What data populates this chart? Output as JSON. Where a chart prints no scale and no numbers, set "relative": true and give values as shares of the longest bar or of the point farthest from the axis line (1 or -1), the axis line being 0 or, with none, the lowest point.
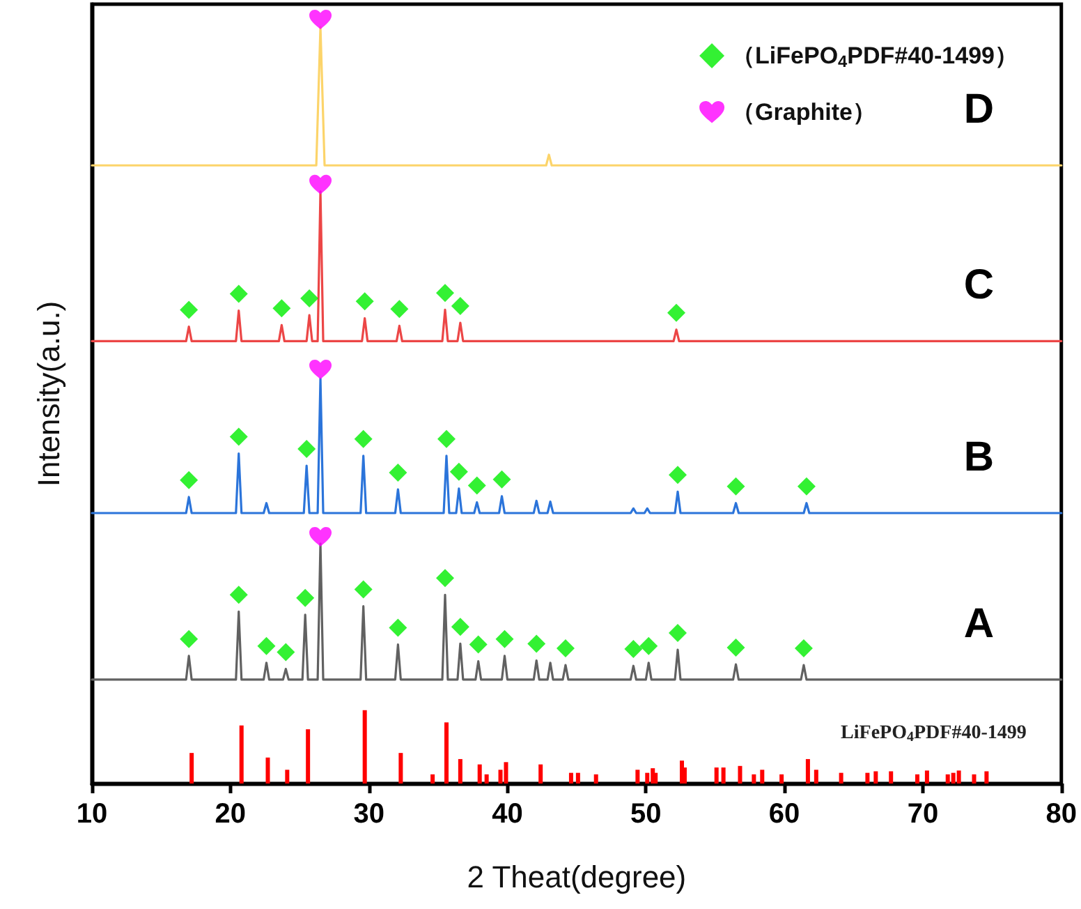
{
  "chart_data": {
    "type": "line",
    "relative": true,
    "xlabel": "2 Theat(degree)",
    "ylabel": "Intensity(a.u.)",
    "xlim": [
      10,
      80
    ],
    "xticks": [
      10,
      20,
      30,
      40,
      50,
      60,
      70,
      80
    ],
    "grid": false,
    "legend": "top right",
    "marker": "none",
    "series": [
      {
        "name": "D",
        "color": "#fcd46a",
        "x": [
          10,
          26.2,
          26.5,
          26.8,
          42.8,
          43.0,
          43.2,
          80
        ],
        "values": [
          0.809,
          0.809,
          0.99,
          0.809,
          0.809,
          0.823,
          0.809,
          0.809
        ]
      },
      {
        "name": "C",
        "color": "#ec4646",
        "x": [
          10,
          16.8,
          17.0,
          17.2,
          20.4,
          20.6,
          20.8,
          23.5,
          23.7,
          23.9,
          25.5,
          25.7,
          25.9,
          26.3,
          26.5,
          26.7,
          29.5,
          29.7,
          29.9,
          32.0,
          32.2,
          32.4,
          35.3,
          35.5,
          35.7,
          36.4,
          36.6,
          36.8,
          52.0,
          52.2,
          52.4,
          80
        ],
        "values": [
          0.579,
          0.579,
          0.598,
          0.579,
          0.579,
          0.619,
          0.579,
          0.579,
          0.6,
          0.579,
          0.579,
          0.613,
          0.579,
          0.579,
          0.775,
          0.579,
          0.579,
          0.609,
          0.579,
          0.579,
          0.599,
          0.579,
          0.579,
          0.62,
          0.579,
          0.579,
          0.603,
          0.579,
          0.579,
          0.594,
          0.579,
          0.579
        ]
      },
      {
        "name": "B",
        "color": "#2b74da",
        "x": [
          10,
          16.8,
          17.0,
          17.2,
          20.4,
          20.6,
          20.8,
          22.4,
          22.6,
          22.8,
          25.3,
          25.5,
          25.7,
          26.3,
          26.5,
          26.7,
          29.4,
          29.6,
          29.8,
          31.9,
          32.1,
          32.3,
          35.4,
          35.6,
          35.8,
          36.3,
          36.5,
          36.7,
          37.6,
          37.8,
          38.0,
          39.4,
          39.6,
          39.8,
          41.9,
          42.1,
          42.3,
          42.9,
          43.1,
          43.3,
          48.9,
          49.1,
          49.3,
          49.9,
          50.1,
          50.3,
          52.1,
          52.3,
          52.5,
          56.3,
          56.5,
          56.7,
          61.4,
          61.6,
          61.8,
          80
        ],
        "values": [
          0.354,
          0.354,
          0.375,
          0.354,
          0.354,
          0.432,
          0.354,
          0.354,
          0.367,
          0.354,
          0.354,
          0.416,
          0.354,
          0.354,
          0.53,
          0.354,
          0.354,
          0.429,
          0.354,
          0.354,
          0.385,
          0.354,
          0.354,
          0.429,
          0.354,
          0.354,
          0.386,
          0.354,
          0.354,
          0.368,
          0.354,
          0.354,
          0.376,
          0.354,
          0.354,
          0.37,
          0.354,
          0.354,
          0.369,
          0.354,
          0.354,
          0.36,
          0.354,
          0.354,
          0.36,
          0.354,
          0.354,
          0.382,
          0.354,
          0.354,
          0.367,
          0.354,
          0.354,
          0.367,
          0.354,
          0.354
        ]
      },
      {
        "name": "A",
        "color": "#616161",
        "x": [
          10,
          16.8,
          17.0,
          17.2,
          20.4,
          20.6,
          20.8,
          22.4,
          22.6,
          22.8,
          23.8,
          24.0,
          24.2,
          25.2,
          25.4,
          25.6,
          26.3,
          26.5,
          26.7,
          29.4,
          29.6,
          29.8,
          31.9,
          32.1,
          32.3,
          35.3,
          35.5,
          35.7,
          36.4,
          36.6,
          36.8,
          37.7,
          37.9,
          38.1,
          39.6,
          39.8,
          40.0,
          41.9,
          42.1,
          42.3,
          42.9,
          43.1,
          43.3,
          44.0,
          44.2,
          44.4,
          48.9,
          49.1,
          49.3,
          50.0,
          50.2,
          50.4,
          52.1,
          52.3,
          52.5,
          56.3,
          56.5,
          56.7,
          61.2,
          61.4,
          61.6,
          80
        ],
        "values": [
          0.136,
          0.136,
          0.167,
          0.136,
          0.136,
          0.225,
          0.136,
          0.136,
          0.158,
          0.136,
          0.136,
          0.15,
          0.136,
          0.136,
          0.221,
          0.136,
          0.136,
          0.314,
          0.136,
          0.136,
          0.232,
          0.136,
          0.136,
          0.182,
          0.136,
          0.136,
          0.247,
          0.136,
          0.136,
          0.183,
          0.136,
          0.136,
          0.16,
          0.136,
          0.136,
          0.167,
          0.136,
          0.136,
          0.161,
          0.136,
          0.136,
          0.158,
          0.136,
          0.136,
          0.155,
          0.136,
          0.136,
          0.154,
          0.136,
          0.136,
          0.158,
          0.136,
          0.136,
          0.175,
          0.136,
          0.136,
          0.156,
          0.136,
          0.136,
          0.155,
          0.136,
          0.136
        ]
      },
      {
        "name": "LiFePO$_{4}$PDF#40-1499",
        "type": "bar",
        "color": "#ff0000",
        "x": [
          17.2,
          20.8,
          22.7,
          24.1,
          25.6,
          29.7,
          32.3,
          34.6,
          35.6,
          36.6,
          38.0,
          38.5,
          39.5,
          39.9,
          42.4,
          44.6,
          45.1,
          46.4,
          49.4,
          50.1,
          50.5,
          50.7,
          52.6,
          52.8,
          55.1,
          55.6,
          56.8,
          57.8,
          58.4,
          59.8,
          61.7,
          62.3,
          64.1,
          66.0,
          66.6,
          67.7,
          69.6,
          70.3,
          71.8,
          72.2,
          72.6,
          73.7,
          74.6
        ],
        "values": [
          0.04,
          0.076,
          0.034,
          0.018,
          0.071,
          0.096,
          0.04,
          0.012,
          0.08,
          0.032,
          0.025,
          0.012,
          0.018,
          0.028,
          0.025,
          0.014,
          0.014,
          0.012,
          0.018,
          0.014,
          0.02,
          0.014,
          0.03,
          0.021,
          0.021,
          0.021,
          0.023,
          0.012,
          0.018,
          0.012,
          0.032,
          0.018,
          0.014,
          0.014,
          0.016,
          0.016,
          0.012,
          0.017,
          0.012,
          0.014,
          0.017,
          0.012,
          0.016
        ]
      },
      {
        "name": "（LiFePO$_{4}$PDF#40-1499）",
        "type": "scatter",
        "marker": "diamond",
        "color": "#00ee00",
        "x": [
          17.0,
          20.6,
          23.7,
          25.7,
          29.7,
          32.2,
          35.5,
          36.6,
          52.2,
          17.0,
          20.6,
          25.5,
          29.6,
          32.1,
          35.6,
          36.5,
          37.8,
          39.6,
          52.3,
          56.5,
          61.6,
          17.0,
          20.6,
          22.6,
          24.0,
          25.4,
          29.6,
          32.1,
          35.5,
          36.6,
          37.9,
          39.8,
          42.1,
          44.2,
          49.1,
          50.2,
          52.3,
          56.5,
          61.4
        ],
        "values": [
          0.62,
          0.641,
          0.622,
          0.635,
          0.631,
          0.621,
          0.642,
          0.625,
          0.616,
          0.397,
          0.454,
          0.438,
          0.451,
          0.407,
          0.451,
          0.408,
          0.39,
          0.398,
          0.404,
          0.389,
          0.389,
          0.189,
          0.247,
          0.18,
          0.172,
          0.243,
          0.254,
          0.204,
          0.269,
          0.205,
          0.182,
          0.189,
          0.183,
          0.177,
          0.176,
          0.18,
          0.197,
          0.178,
          0.177
        ]
      },
      {
        "name": "（Graphite）",
        "type": "scatter",
        "color": "#ff00ff",
        "x": [
          26.5,
          26.5,
          26.5,
          26.5
        ],
        "values": [
          1.0,
          0.784,
          0.542,
          0.323
        ]
      }
    ]
  }
}
